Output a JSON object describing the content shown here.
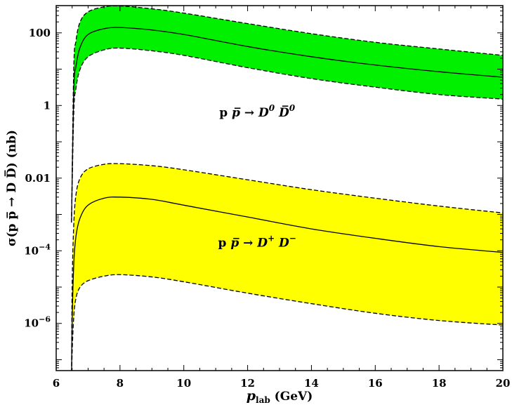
{
  "chart_data": {
    "type": "area",
    "xlabel": {
      "main": "p",
      "sub": "lab",
      "unit": " (GeV)"
    },
    "ylabel": "σ(p p̅ → D D̅) (nb)",
    "xlim": [
      6,
      20
    ],
    "ylim_log10": [
      -7.3,
      2.75
    ],
    "yscale": "log",
    "grid": false,
    "x_ticks": [
      {
        "value": 6,
        "label": "6"
      },
      {
        "value": 8,
        "label": "8"
      },
      {
        "value": 10,
        "label": "10"
      },
      {
        "value": 12,
        "label": "12"
      },
      {
        "value": 14,
        "label": "14"
      },
      {
        "value": 16,
        "label": "16"
      },
      {
        "value": 18,
        "label": "18"
      },
      {
        "value": 20,
        "label": "20"
      }
    ],
    "y_ticks": [
      {
        "value": 100,
        "base": "100",
        "exp": ""
      },
      {
        "value": 1,
        "base": "1",
        "exp": ""
      },
      {
        "value": 0.01,
        "base": "0.01",
        "exp": ""
      },
      {
        "value": 0.0001,
        "base": "10",
        "exp": "−4"
      },
      {
        "value": 1e-06,
        "base": "10",
        "exp": "−6"
      }
    ],
    "series": [
      {
        "color": "#00f000",
        "x": [
          6.48,
          6.55,
          6.62,
          6.75,
          7.0,
          7.5,
          8.0,
          9.0,
          10.0,
          12.0,
          14.0,
          16.0,
          18.0,
          20.0
        ],
        "central": [
          0.0006,
          2.5,
          12.0,
          40.0,
          90.0,
          130.0,
          140.0,
          120.0,
          90.0,
          42.0,
          22.0,
          13.0,
          8.5,
          6.0
        ],
        "upper": [
          0.0006,
          10.0,
          60.0,
          200.0,
          380.0,
          520.0,
          550.0,
          460.0,
          350.0,
          180.0,
          95.0,
          55.0,
          36.0,
          24.0
        ],
        "lower": [
          0.0006,
          0.6,
          3.0,
          10.0,
          22.0,
          34.0,
          38.0,
          32.0,
          24.0,
          11.0,
          5.5,
          3.2,
          2.0,
          1.5
        ]
      },
      {
        "color": "#ffff00",
        "x": [
          6.48,
          6.5,
          6.55,
          6.62,
          6.75,
          7.0,
          7.5,
          8.0,
          9.0,
          10.0,
          12.0,
          14.0,
          16.0,
          18.0,
          20.0
        ],
        "central": [
          2e-08,
          1e-06,
          4e-05,
          0.00025,
          0.0008,
          0.0018,
          0.0028,
          0.003,
          0.0026,
          0.0018,
          0.00085,
          0.0004,
          0.00022,
          0.00013,
          9e-05
        ],
        "upper": [
          2e-08,
          1e-05,
          0.0005,
          0.0035,
          0.01,
          0.018,
          0.024,
          0.025,
          0.022,
          0.017,
          0.009,
          0.0048,
          0.0028,
          0.0017,
          0.0011
        ],
        "lower": [
          2e-08,
          1.5e-07,
          1.5e-06,
          5e-06,
          1e-05,
          1.5e-05,
          2e-05,
          2.2e-05,
          1.9e-05,
          1.4e-05,
          6.8e-06,
          3.5e-06,
          1.9e-06,
          1.2e-06,
          9e-07
        ]
      }
    ],
    "annotations": [
      {
        "x": 12.3,
        "y": 0.5,
        "prefix": "p ",
        "reaction": "p̅ → D",
        "sup1": "0",
        "mid": " D̅",
        "sup2": "0"
      },
      {
        "x": 12.3,
        "y": 0.00013,
        "prefix": "p ",
        "reaction": "p̅ → D",
        "sup1": "+",
        "mid": " D",
        "sup2": "−"
      }
    ]
  }
}
